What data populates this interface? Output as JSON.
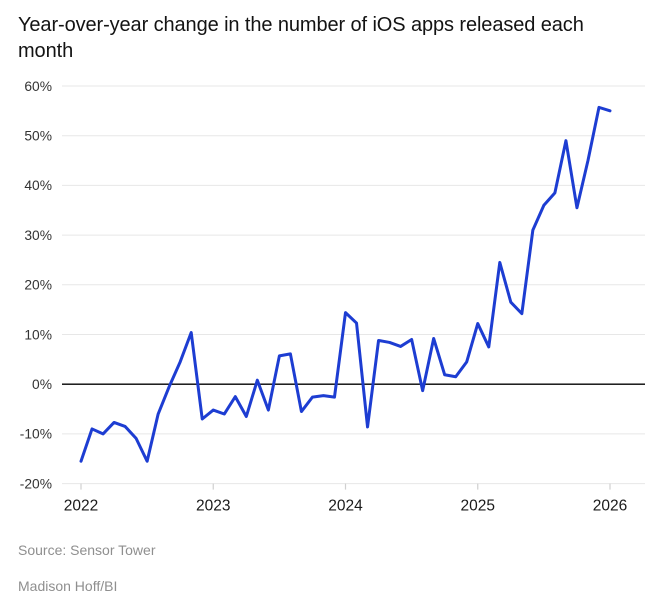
{
  "footer": {
    "source": "Source: Sensor Tower",
    "byline": "Madison Hoff/BI"
  },
  "chart_data": {
    "type": "line",
    "title": "Year-over-year change in the number of iOS apps released each month",
    "xlabel": "",
    "ylabel": "",
    "ylim": [
      -20,
      60
    ],
    "grid": "horizontal",
    "zero_line": true,
    "legend": "none",
    "colors": {
      "line": "#1d3dd2",
      "gridline": "#e7e7e7",
      "zero_line": "#000000",
      "tick_mark": "#d0d0d0",
      "y_tick_text": "#333333",
      "x_tick_text": "#1a1a1a"
    },
    "y_ticks": [
      {
        "value": 60,
        "label": "60%"
      },
      {
        "value": 50,
        "label": "50%"
      },
      {
        "value": 40,
        "label": "40%"
      },
      {
        "value": 30,
        "label": "30%"
      },
      {
        "value": 20,
        "label": "20%"
      },
      {
        "value": 10,
        "label": "10%"
      },
      {
        "value": 0,
        "label": "0%"
      },
      {
        "value": -10,
        "label": "-10%"
      },
      {
        "value": -20,
        "label": "-20%"
      }
    ],
    "x_ticks": [
      {
        "month_index": 0,
        "label": "2022"
      },
      {
        "month_index": 12,
        "label": "2023"
      },
      {
        "month_index": 24,
        "label": "2024"
      },
      {
        "month_index": 36,
        "label": "2025"
      },
      {
        "month_index": 48,
        "label": "2026"
      }
    ],
    "series": [
      {
        "name": "Year-over-year change in iOS apps released (%)",
        "start_month": "2022-01",
        "end_month": "2026-01",
        "values": [
          -15.5,
          -9,
          -10,
          -7.7,
          -8.5,
          -10.9,
          -15.5,
          -6,
          -0.5,
          4.5,
          10.4,
          -7,
          -5.2,
          -6,
          -2.5,
          -6.5,
          0.8,
          -5.2,
          5.7,
          6.1,
          -5.5,
          -2.6,
          -2.3,
          -2.6,
          14.4,
          12.3,
          -8.6,
          8.8,
          8.4,
          7.6,
          9,
          -1.3,
          9.2,
          1.9,
          1.5,
          4.5,
          12.2,
          7.5,
          24.5,
          16.5,
          14.2,
          31,
          36,
          38.5,
          49,
          35.5,
          45,
          55.7,
          55
        ]
      }
    ]
  }
}
